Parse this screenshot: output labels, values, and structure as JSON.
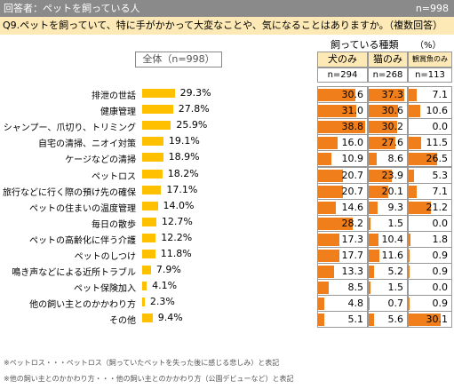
{
  "header": {
    "respondent_label": "回答者：ペットを飼っている人",
    "n_label": "n=998"
  },
  "question": "Q9.ペットを飼っていて、特に手がかかって大変なことや、気になることはありますか。（複数回答）",
  "pct_unit": "（%）",
  "total_label": "全体（n=998）",
  "breakdown_title": "飼っている種類",
  "colors": {
    "total_bar": "#ffc000",
    "breakdown_bar": "#f07f1b",
    "header_fill": "#fde9b6"
  },
  "chart_data": {
    "type": "bar",
    "categories": [
      "排泄の世話",
      "健康管理",
      "シャンプー、爪切り、トリミング",
      "自宅の清掃、ニオイ対策",
      "ケージなどの清掃",
      "ペットロス",
      "旅行などに行く際の預け先の確保",
      "ペットの住まいの温度管理",
      "毎日の散歩",
      "ペットの高齢化に伴う介護",
      "ペットのしつけ",
      "鳴き声などによる近所トラブル",
      "ペット保険加入",
      "他の飼い主とのかかわり方",
      "その他"
    ],
    "total": {
      "name": "全体（n=998）",
      "values": [
        29.3,
        27.8,
        25.9,
        19.1,
        18.9,
        18.2,
        17.1,
        14.0,
        12.7,
        12.2,
        11.8,
        7.9,
        4.1,
        2.3,
        9.4
      ]
    },
    "series": [
      {
        "name": "犬のみ",
        "n": "n=294",
        "values": [
          30.6,
          31.0,
          38.8,
          16.0,
          10.9,
          20.7,
          20.7,
          14.6,
          28.2,
          17.3,
          17.7,
          13.3,
          8.5,
          4.8,
          5.1
        ]
      },
      {
        "name": "猫のみ",
        "n": "n=268",
        "values": [
          37.3,
          30.6,
          30.2,
          27.6,
          8.6,
          23.9,
          20.1,
          9.3,
          1.5,
          10.4,
          11.6,
          5.2,
          1.5,
          0.7,
          5.6
        ]
      },
      {
        "name": "観賞魚のみ",
        "n": "n=113",
        "values": [
          7.1,
          10.6,
          0.0,
          11.5,
          26.5,
          5.3,
          7.1,
          21.2,
          0.0,
          1.8,
          0.9,
          0.9,
          0.0,
          0.9,
          30.1
        ]
      }
    ],
    "xlim": [
      0,
      100
    ]
  },
  "footnotes": [
    "※ペットロス・・・ペットロス（飼っていたペットを失った後に感じる悲しみ）と表記",
    "※他の飼い主とのかかわり方・・・他の飼い主とのかかわり方（公園デビューなど）と表記"
  ]
}
